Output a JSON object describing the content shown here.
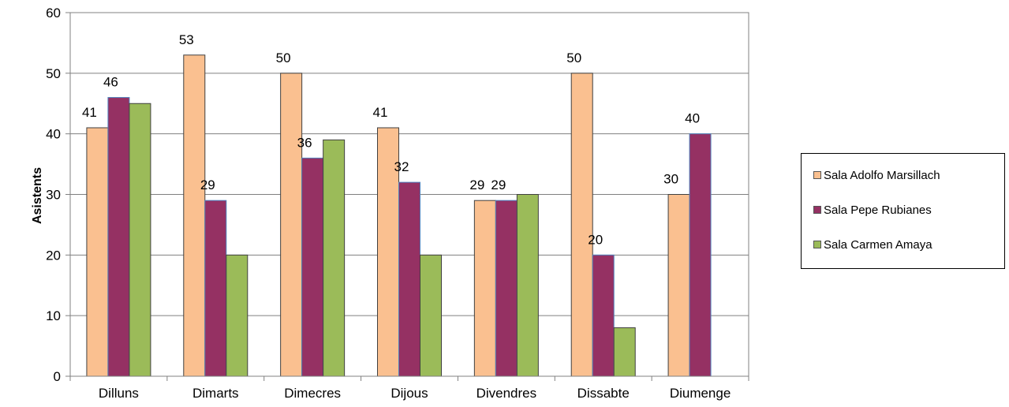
{
  "chart_data": {
    "type": "bar",
    "title": "",
    "xlabel": "",
    "ylabel": "Asistents",
    "ylim": [
      0,
      60
    ],
    "yticks": [
      0,
      10,
      20,
      30,
      40,
      50,
      60
    ],
    "grid": true,
    "legend_position": "right",
    "categories": [
      "Dilluns",
      "Dimarts",
      "Dimecres",
      "Dijous",
      "Divendres",
      "Dissabte",
      "Diumenge"
    ],
    "series": [
      {
        "name": "Sala Adolfo Marsillach",
        "color": "#fac090",
        "values": [
          41,
          53,
          50,
          41,
          29,
          50,
          30
        ],
        "labeled": [
          true,
          true,
          true,
          true,
          true,
          true,
          true
        ]
      },
      {
        "name": "Sala Pepe Rubianes",
        "color": "#953163",
        "values": [
          46,
          29,
          36,
          32,
          29,
          20,
          40
        ],
        "labeled": [
          true,
          true,
          true,
          true,
          true,
          true,
          true
        ]
      },
      {
        "name": "Sala Carmen Amaya",
        "color": "#9bbb59",
        "values": [
          45,
          20,
          39,
          20,
          30,
          8,
          null
        ],
        "labeled": [
          false,
          false,
          false,
          false,
          false,
          false,
          false
        ]
      }
    ]
  }
}
